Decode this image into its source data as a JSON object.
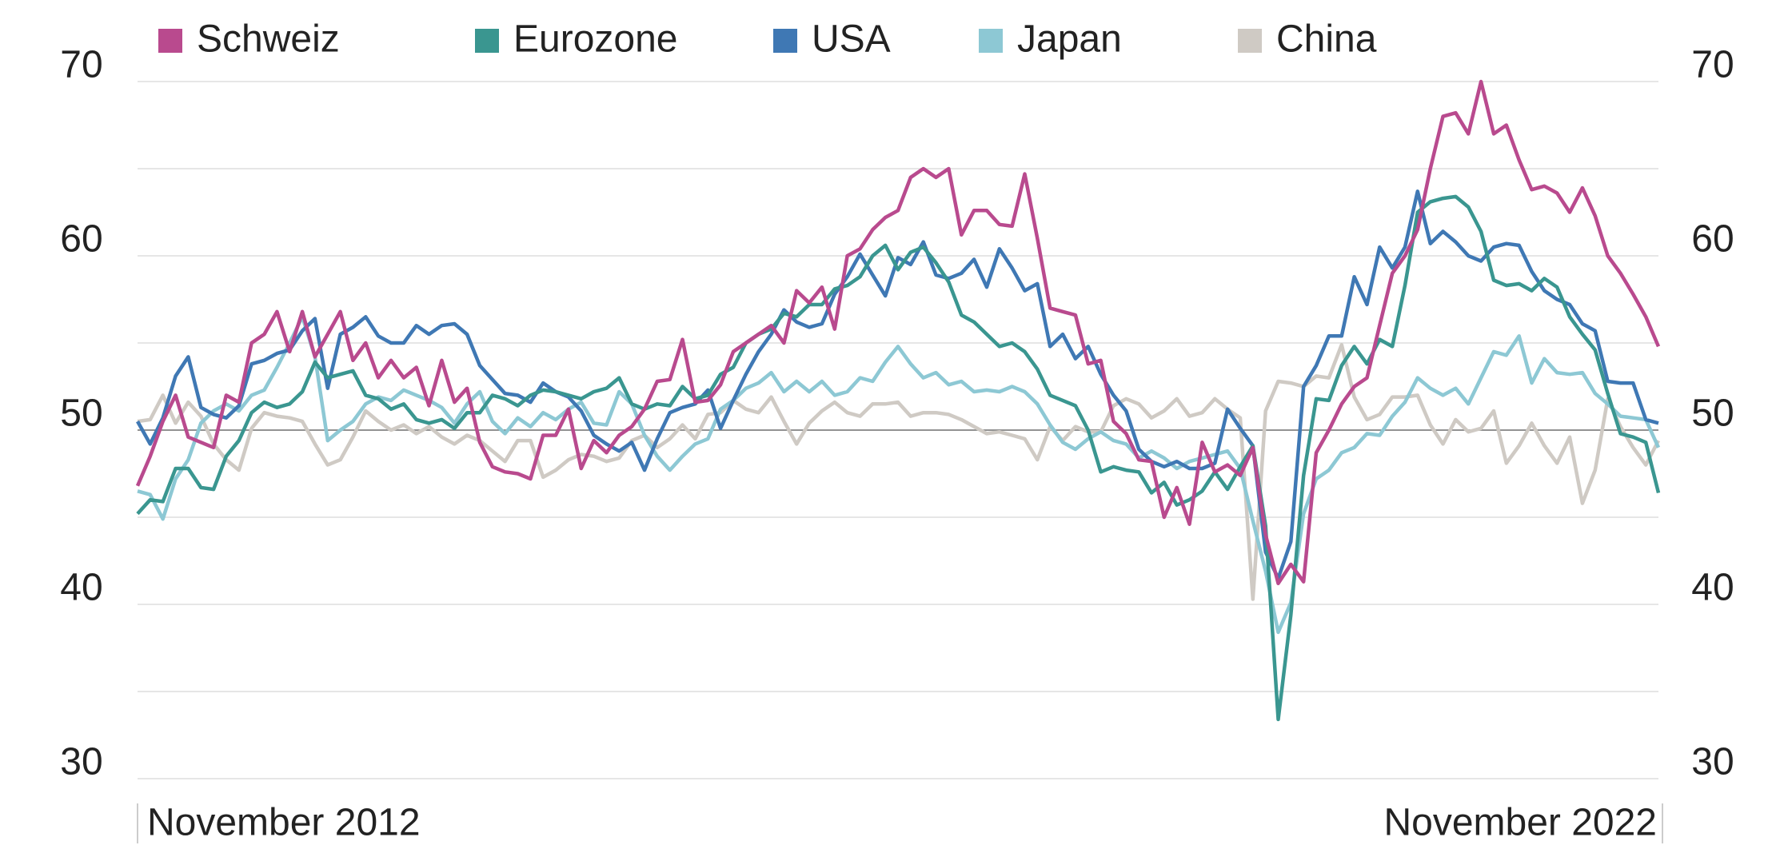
{
  "chart_data": {
    "type": "line",
    "categories": [
      "November 2012",
      null,
      null,
      null,
      null,
      null,
      null,
      null,
      null,
      null,
      null,
      null,
      null,
      null,
      null,
      null,
      null,
      null,
      null,
      null,
      null,
      null,
      null,
      null,
      null,
      null,
      null,
      null,
      null,
      null,
      null,
      null,
      null,
      null,
      null,
      null,
      null,
      null,
      null,
      null,
      null,
      null,
      null,
      null,
      null,
      null,
      null,
      null,
      null,
      null,
      null,
      null,
      null,
      null,
      null,
      null,
      null,
      null,
      null,
      null,
      null,
      null,
      null,
      null,
      null,
      null,
      null,
      null,
      null,
      null,
      null,
      null,
      null,
      null,
      null,
      null,
      null,
      null,
      null,
      null,
      null,
      null,
      null,
      null,
      null,
      null,
      null,
      null,
      null,
      null,
      null,
      null,
      null,
      null,
      null,
      null,
      null,
      null,
      null,
      null,
      null,
      null,
      null,
      null,
      null,
      null,
      null,
      null,
      null,
      null,
      null,
      null,
      null,
      null,
      null,
      null,
      null,
      null,
      null,
      null,
      "November 2022"
    ],
    "series": [
      {
        "name": "Schweiz",
        "color": "#b94a8e",
        "values": [
          46.8,
          48.5,
          50.5,
          52,
          49.6,
          49.3,
          49,
          52,
          51.6,
          55,
          55.5,
          56.8,
          54.5,
          56.8,
          54.2,
          55.5,
          56.8,
          54,
          55,
          53,
          54,
          53,
          53.6,
          51.4,
          54,
          51.6,
          52.4,
          49.3,
          47.9,
          47.6,
          47.5,
          47.2,
          49.7,
          49.7,
          51.2,
          47.8,
          49.4,
          48.7,
          49.7,
          50.2,
          51.2,
          52.8,
          52.9,
          55.2,
          51.6,
          51.7,
          52.6,
          54.5,
          55,
          55.5,
          56,
          55,
          58,
          57.3,
          58.2,
          55.8,
          60,
          60.4,
          61.5,
          62.2,
          62.6,
          64.5,
          65,
          64.5,
          65,
          61.2,
          62.6,
          62.6,
          61.8,
          61.7,
          64.7,
          61,
          57,
          56.8,
          56.6,
          53.8,
          54,
          50.5,
          49.8,
          48.3,
          48.2,
          45,
          46.7,
          44.6,
          49.3,
          47.6,
          48,
          47.4,
          49,
          44,
          41.2,
          42.3,
          41.3,
          48.7,
          50,
          51.5,
          52.5,
          53,
          56,
          59,
          60,
          61.5,
          65,
          68,
          68.2,
          67,
          70,
          67,
          67.5,
          65.5,
          63.8,
          64,
          63.6,
          62.5,
          63.9,
          62.3,
          60,
          59,
          57.8,
          56.5,
          54.8
        ]
      },
      {
        "name": "Eurozone",
        "color": "#3a9690",
        "values": [
          45.2,
          46,
          45.9,
          47.8,
          47.8,
          46.7,
          46.6,
          48.5,
          49.4,
          51,
          51.6,
          51.3,
          51.5,
          52.2,
          53.9,
          53,
          53.2,
          53.4,
          52,
          51.8,
          51.2,
          51.5,
          50.6,
          50.4,
          50.6,
          50.1,
          51,
          51,
          52,
          51.8,
          51.4,
          52,
          52.3,
          52.2,
          52,
          51.8,
          52.2,
          52.4,
          53,
          51.5,
          51.2,
          51.5,
          51.4,
          52.5,
          51.8,
          52,
          53.2,
          53.6,
          55,
          55.5,
          55.8,
          56.7,
          56.5,
          57.2,
          57.2,
          58.1,
          58.3,
          58.8,
          60,
          60.6,
          59.2,
          60.2,
          60.5,
          59.6,
          58.5,
          56.6,
          56.2,
          55.5,
          54.8,
          55,
          54.5,
          53.5,
          52,
          51.7,
          51.4,
          50,
          47.6,
          47.9,
          47.7,
          47.6,
          46.4,
          47,
          45.7,
          46,
          46.5,
          47.6,
          46.6,
          47.9,
          49.1,
          44.5,
          33.4,
          39.4,
          47.4,
          51.8,
          51.7,
          53.7,
          54.8,
          53.8,
          55.2,
          54.8,
          58.3,
          62.5,
          63.1,
          63.3,
          63.4,
          62.8,
          61.4,
          58.6,
          58.3,
          58.4,
          58,
          58.7,
          58.2,
          56.5,
          55.5,
          54.6,
          52.1,
          49.8,
          49.6,
          49.3,
          46.4
        ]
      },
      {
        "name": "USA",
        "color": "#3f78b4",
        "values": [
          50.5,
          49.2,
          50.7,
          53.1,
          54.2,
          51.3,
          50.9,
          50.7,
          51.4,
          53.8,
          54,
          54.4,
          54.6,
          55.7,
          56.4,
          52.4,
          55.5,
          55.9,
          56.5,
          55.4,
          55,
          55,
          56,
          55.5,
          56,
          56.1,
          55.5,
          53.7,
          52.9,
          52.1,
          52,
          51.6,
          52.7,
          52.2,
          51.9,
          51.1,
          49.7,
          49.2,
          48.8,
          49.3,
          47.7,
          49.5,
          51,
          51.3,
          51.5,
          52.3,
          50.1,
          51.7,
          53.2,
          54.5,
          55.5,
          56.9,
          56.2,
          55.9,
          56.1,
          57.8,
          58.8,
          60.1,
          58.9,
          57.7,
          59.9,
          59.5,
          60.8,
          58.9,
          58.7,
          59,
          59.8,
          58.2,
          60.4,
          59.3,
          58,
          58.4,
          54.8,
          55.5,
          54.1,
          54.8,
          53.2,
          52,
          51.1,
          48.9,
          48.2,
          47.9,
          48.2,
          47.8,
          47.8,
          48.1,
          51.2,
          50.1,
          49.1,
          43,
          41.5,
          43.6,
          52.5,
          53.7,
          55.4,
          55.4,
          58.8,
          57.2,
          60.5,
          59.3,
          60.5,
          63.7,
          60.7,
          61.4,
          60.8,
          60,
          59.7,
          60.5,
          60.7,
          60.6,
          59.1,
          58,
          57.5,
          57.2,
          56.1,
          55.7,
          52.8,
          52.7,
          52.7,
          50.6,
          50.4
        ]
      },
      {
        "name": "Japan",
        "color": "#8dc8d4",
        "values": [
          46.5,
          46.3,
          44.9,
          47.2,
          48.3,
          50.4,
          51.1,
          51.5,
          51.1,
          52,
          52.3,
          53.6,
          55,
          56.5,
          54.2,
          49.4,
          50,
          50.5,
          51.5,
          51.9,
          51.7,
          52.3,
          52,
          51.7,
          51.3,
          50.4,
          51.5,
          52.2,
          50.5,
          49.8,
          50.7,
          50.2,
          51,
          50.6,
          51.2,
          51.6,
          50.4,
          50.3,
          52.2,
          51.5,
          49.7,
          48.5,
          47.7,
          48.5,
          49.2,
          49.5,
          51.2,
          51.7,
          52.4,
          52.7,
          53.3,
          52.2,
          52.8,
          52.2,
          52.8,
          52,
          52.2,
          53,
          52.8,
          53.9,
          54.8,
          53.8,
          53,
          53.3,
          52.6,
          52.8,
          52.2,
          52.3,
          52.2,
          52.5,
          52.2,
          51.5,
          50.3,
          49.3,
          48.9,
          49.5,
          49.9,
          49.4,
          49.2,
          48.4,
          48.8,
          48.4,
          47.8,
          48.2,
          48.4,
          48.6,
          48.8,
          47.8,
          44.8,
          41.9,
          38.4,
          40.1,
          45.2,
          47.2,
          47.7,
          48.7,
          49,
          49.8,
          49.7,
          50.8,
          51.6,
          53,
          52.4,
          52,
          52.4,
          51.5,
          53,
          54.5,
          54.3,
          55.4,
          52.7,
          54.1,
          53.3,
          53.2,
          53.3,
          52.1,
          51.5,
          50.8,
          50.7,
          50.6,
          49
        ]
      },
      {
        "name": "China",
        "color": "#cfcac4",
        "values": [
          50.5,
          50.6,
          52,
          50.4,
          51.6,
          50.8,
          49.2,
          48.3,
          47.7,
          50.1,
          51,
          50.8,
          50.7,
          50.5,
          49.2,
          48,
          48.3,
          49.6,
          51.1,
          50.5,
          50,
          50.3,
          49.8,
          50.2,
          49.6,
          49.2,
          49.7,
          49.4,
          48.8,
          48.2,
          49.4,
          49.4,
          47.3,
          47.7,
          48.3,
          48.6,
          48.5,
          48.2,
          48.4,
          49.4,
          49.7,
          49,
          49.5,
          50.3,
          49.5,
          50.9,
          51,
          51.7,
          51.2,
          51,
          51.9,
          50.5,
          49.2,
          50.4,
          51.1,
          51.6,
          51,
          50.8,
          51.5,
          51.5,
          51.6,
          50.8,
          51,
          51,
          50.9,
          50.6,
          50.2,
          49.8,
          49.9,
          49.7,
          49.5,
          48.3,
          50.2,
          49.4,
          50.2,
          49.9,
          49.9,
          51.4,
          51.8,
          51.5,
          50.7,
          51.1,
          51.8,
          50.8,
          51,
          51.8,
          51.2,
          50.7,
          40.3,
          51.1,
          52.8,
          52.7,
          52.5,
          53.1,
          53,
          54.9,
          51.9,
          50.6,
          50.9,
          51.9,
          51.9,
          52,
          50.3,
          49.2,
          50.6,
          49.9,
          50.1,
          51.1,
          48.1,
          49.1,
          50.4,
          49.1,
          48.1,
          49.6,
          45.8,
          47.7,
          51.8,
          50.2,
          49,
          48,
          49.4
        ]
      }
    ],
    "ylim": [
      30,
      70
    ],
    "yticks": [
      30,
      40,
      50,
      60,
      70
    ],
    "y_minor_ticks": [
      35,
      45,
      55,
      65
    ],
    "reference_line": 50,
    "grid": true,
    "legend": "top"
  }
}
